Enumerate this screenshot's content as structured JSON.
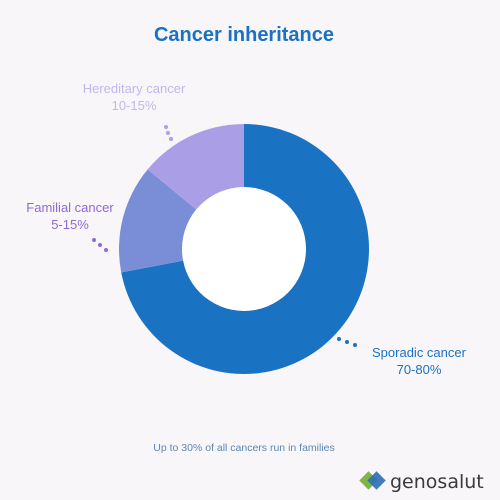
{
  "chart_data": {
    "type": "pie",
    "title": "Cancer inheritance",
    "donut": true,
    "slices": [
      {
        "label": "Sporadic cancer",
        "range_label": "70-80%",
        "value": 72,
        "color": "#1a72c3"
      },
      {
        "label": "Familial cancer",
        "range_label": "5-15%",
        "value": 14,
        "color": "#7a8ed8"
      },
      {
        "label": "Hereditary cancer",
        "range_label": "10-15%",
        "value": 14,
        "color": "#aa9fe6"
      }
    ],
    "footnote": "Up to 30% of all cancers run in families"
  },
  "colors": {
    "title": "#1a72c3",
    "footnote": "#5b87b8",
    "background": "#f8f6f8",
    "hole": "#ffffff"
  },
  "brand": {
    "name": "genosalut",
    "icon": "genosalut-logo-icon"
  }
}
